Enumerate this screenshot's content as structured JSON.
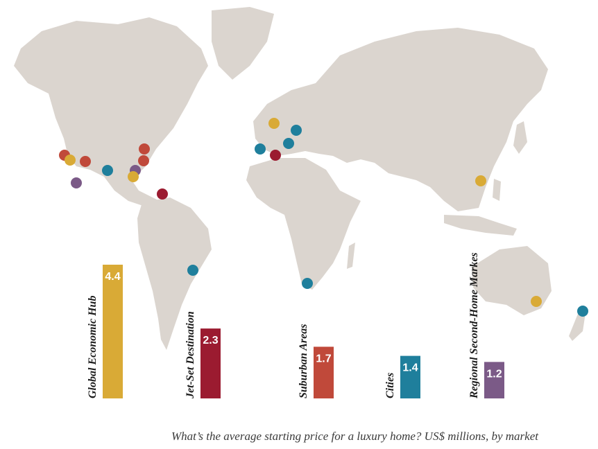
{
  "chart_data": {
    "type": "bar",
    "title": "",
    "xlabel": "",
    "ylabel": "",
    "ylim": [
      0,
      4.4
    ],
    "categories": [
      "Global Economic Hub",
      "Jet-Set Destination",
      "Suburban Areas",
      "Cities",
      "Regional Second-Home Markes"
    ],
    "values": [
      4.4,
      2.3,
      1.7,
      1.4,
      1.2
    ],
    "value_labels": [
      "4.4",
      "2.3",
      "1.7",
      "1.4",
      "1.2"
    ],
    "colors": [
      "#d9aa36",
      "#9b1b30",
      "#c0493a",
      "#1f7f9c",
      "#7b5a87"
    ],
    "background": "world map",
    "legend": "none"
  },
  "caption": "What’s the average starting price for a luxury home? US$ millions, by market",
  "map_colors": {
    "land": "#dbd5cf",
    "ocean": "#ffffff"
  }
}
